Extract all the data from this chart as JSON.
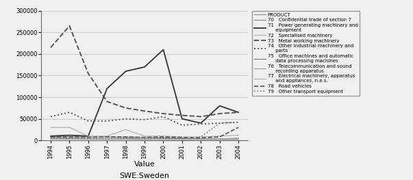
{
  "years": [
    1994,
    1995,
    1996,
    1997,
    1998,
    1999,
    2000,
    2001,
    2002,
    2003,
    2004
  ],
  "series": {
    "70": [
      8000,
      9000,
      8000,
      8000,
      8000,
      7000,
      6000,
      5000,
      4000,
      3000,
      3000
    ],
    "71": [
      10000,
      12000,
      10000,
      120000,
      160000,
      170000,
      210000,
      50000,
      40000,
      80000,
      65000
    ],
    "72": [
      30000,
      30000,
      10000,
      10000,
      25000,
      10000,
      10000,
      8000,
      8000,
      10000,
      12000
    ],
    "73": [
      215000,
      265000,
      155000,
      90000,
      75000,
      68000,
      62000,
      58000,
      55000,
      62000,
      65000
    ],
    "74": [
      55000,
      65000,
      45000,
      45000,
      50000,
      48000,
      55000,
      35000,
      38000,
      40000,
      42000
    ],
    "75": [
      5000,
      5000,
      4000,
      4000,
      5000,
      4000,
      5000,
      4000,
      3000,
      4000,
      5000
    ],
    "76": [
      3000,
      3000,
      3000,
      3000,
      3000,
      2000,
      2000,
      2000,
      2000,
      2000,
      2000
    ],
    "77": [
      5000,
      5000,
      4000,
      4000,
      5000,
      4000,
      4000,
      3000,
      3000,
      4000,
      4000
    ],
    "78": [
      8000,
      8000,
      7000,
      8000,
      8000,
      7000,
      8000,
      7000,
      6000,
      8000,
      30000
    ],
    "79": [
      5000,
      5000,
      4000,
      4000,
      4000,
      4000,
      5000,
      5000,
      8000,
      40000,
      42000
    ]
  },
  "line_styles": {
    "PRODUCT": {
      "color": "#888888",
      "linestyle": "-",
      "linewidth": 0.8
    },
    "70": {
      "color": "#888888",
      "linestyle": "-",
      "linewidth": 0.8
    },
    "71": {
      "color": "#333333",
      "linestyle": "-",
      "linewidth": 1.3
    },
    "72": {
      "color": "#aaaaaa",
      "linestyle": "-",
      "linewidth": 0.8
    },
    "73": {
      "color": "#555555",
      "linestyle": "--",
      "linewidth": 1.4
    },
    "74": {
      "color": "#555555",
      "linestyle": ":",
      "linewidth": 1.4
    },
    "75": {
      "color": "#777777",
      "linestyle": "-",
      "linewidth": 0.8
    },
    "76": {
      "color": "#999999",
      "linestyle": "-",
      "linewidth": 0.8
    },
    "77": {
      "color": "#aaaaaa",
      "linestyle": "-",
      "linewidth": 0.8
    },
    "78": {
      "color": "#555555",
      "linestyle": "--",
      "linewidth": 1.2
    },
    "79": {
      "color": "#777777",
      "linestyle": ":",
      "linewidth": 1.2
    }
  },
  "legend_labels": {
    "PRODUCT": "PRODUCT",
    "70": "70   Confidential trade of section 7",
    "71": "71   Power generating machinery and\n     equipment",
    "72": "72   Specialised machinery",
    "73": "73   Metal working machinery",
    "74": "74   Other industrial machinery and\n     parts",
    "75": "75   Office machines and automatic\n     data processing machines",
    "76": "76   Telecommunication and sound\n     recording apparatus",
    "77": "77   Electrical machinery, apparatus\n     and appliances, n.e.s.",
    "78": "78   Road vehicles",
    "79": "79   Other transport equipment"
  },
  "xlabel": "Value",
  "subtitle": "SWE:Sweden",
  "ylim": [
    0,
    300000
  ],
  "yticks": [
    0,
    50000,
    100000,
    150000,
    200000,
    250000,
    300000
  ],
  "background_color": "#f0f0f0"
}
